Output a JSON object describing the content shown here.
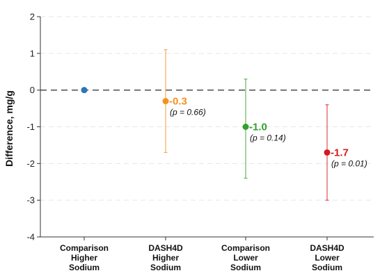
{
  "chart_data": {
    "type": "scatter",
    "ylabel": "Difference, mg/g",
    "ylim": [
      -4,
      2
    ],
    "yticks": [
      2,
      1,
      0,
      -1,
      -2,
      -3,
      -4
    ],
    "reference_line": 0,
    "grid": "horizontal dashed",
    "categories": [
      [
        "Comparison",
        "Higher",
        "Sodium"
      ],
      [
        "DASH4D",
        "Higher",
        "Sodium"
      ],
      [
        "Comparison",
        "Lower",
        "Sodium"
      ],
      [
        "DASH4D",
        "Lower",
        "Sodium"
      ]
    ],
    "points": [
      {
        "value": 0,
        "ci_low": null,
        "ci_high": null,
        "color": "#2e75b6",
        "label": "",
        "p_label": ""
      },
      {
        "value": -0.3,
        "ci_low": -1.7,
        "ci_high": 1.1,
        "color": "#f5921e",
        "label": "-0.3",
        "p_label": "(p = 0.66)"
      },
      {
        "value": -1.0,
        "ci_low": -2.4,
        "ci_high": 0.3,
        "color": "#33a02c",
        "label": "-1.0",
        "p_label": "(p = 0.14)"
      },
      {
        "value": -1.7,
        "ci_low": -3.0,
        "ci_high": -0.4,
        "color": "#d7191c",
        "label": "-1.7",
        "p_label": "(p = 0.01)"
      }
    ]
  }
}
